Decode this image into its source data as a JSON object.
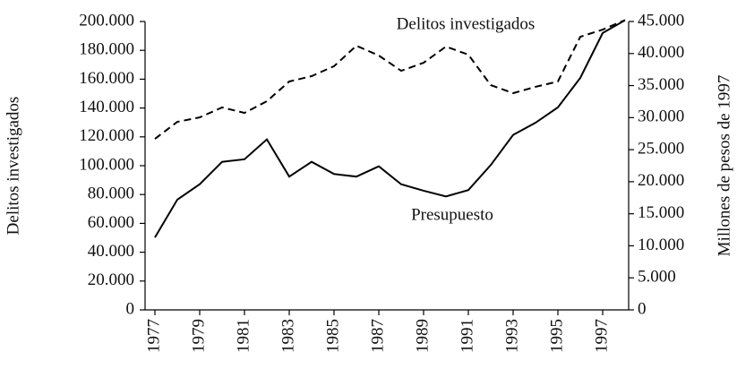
{
  "chart_data": {
    "type": "line",
    "x": [
      1977,
      1978,
      1979,
      1980,
      1981,
      1982,
      1983,
      1984,
      1985,
      1986,
      1987,
      1988,
      1989,
      1990,
      1991,
      1992,
      1993,
      1994,
      1995,
      1996,
      1997,
      1998
    ],
    "series": [
      {
        "name": "Delitos investigados",
        "color": "#000000",
        "dash": true,
        "axis": "y",
        "values": [
          118600,
          130400,
          133500,
          140400,
          136600,
          144700,
          158400,
          162100,
          169000,
          183200,
          176400,
          165800,
          171400,
          182600,
          177000,
          155900,
          150300,
          154700,
          158400,
          189400,
          194400,
          201000
        ]
      },
      {
        "name": "Presupuesto",
        "color": "#000000",
        "dash": false,
        "axis": "y2",
        "values": [
          11300,
          17200,
          19600,
          23100,
          23500,
          26600,
          20800,
          23100,
          21200,
          20800,
          22400,
          19600,
          18600,
          17700,
          18700,
          22600,
          27300,
          29200,
          31600,
          36200,
          43200,
          45200
        ]
      }
    ],
    "ylabel": "Delitos investigados",
    "y2label": "Millones de pesos de 1997",
    "xlim": [
      1976.56,
      1998.16
    ],
    "xticks": [
      1977,
      1979,
      1981,
      1983,
      1985,
      1987,
      1989,
      1991,
      1993,
      1995,
      1997
    ],
    "ylim": [
      0,
      200000
    ],
    "yticks": [
      0,
      {
        "value": 20000,
        "label": "20.000"
      },
      {
        "value": 40000,
        "label": "40.000"
      },
      {
        "value": 60000,
        "label": "60.000"
      },
      {
        "value": 80000,
        "label": "80.000"
      },
      {
        "value": 100000,
        "label": "100.000"
      },
      {
        "value": 120000,
        "label": "120.000"
      },
      {
        "value": 140000,
        "label": "140.000"
      },
      {
        "value": 160000,
        "label": "160.000"
      },
      {
        "value": 180000,
        "label": "180.000"
      },
      {
        "value": 200000,
        "label": "200.000"
      }
    ],
    "y2lim": [
      0,
      45000
    ],
    "y2ticks": [
      0,
      {
        "value": 5000,
        "label": "5.000"
      },
      {
        "value": 10000,
        "label": "10.000"
      },
      {
        "value": 15000,
        "label": "15.000"
      },
      {
        "value": 20000,
        "label": "20.000"
      },
      {
        "value": 25000,
        "label": "25.000"
      },
      {
        "value": 30000,
        "label": "30.000"
      },
      {
        "value": 35000,
        "label": "35.000"
      },
      {
        "value": 40000,
        "label": "40.000"
      },
      {
        "value": 45000,
        "label": "45.000"
      }
    ],
    "grid": false
  }
}
